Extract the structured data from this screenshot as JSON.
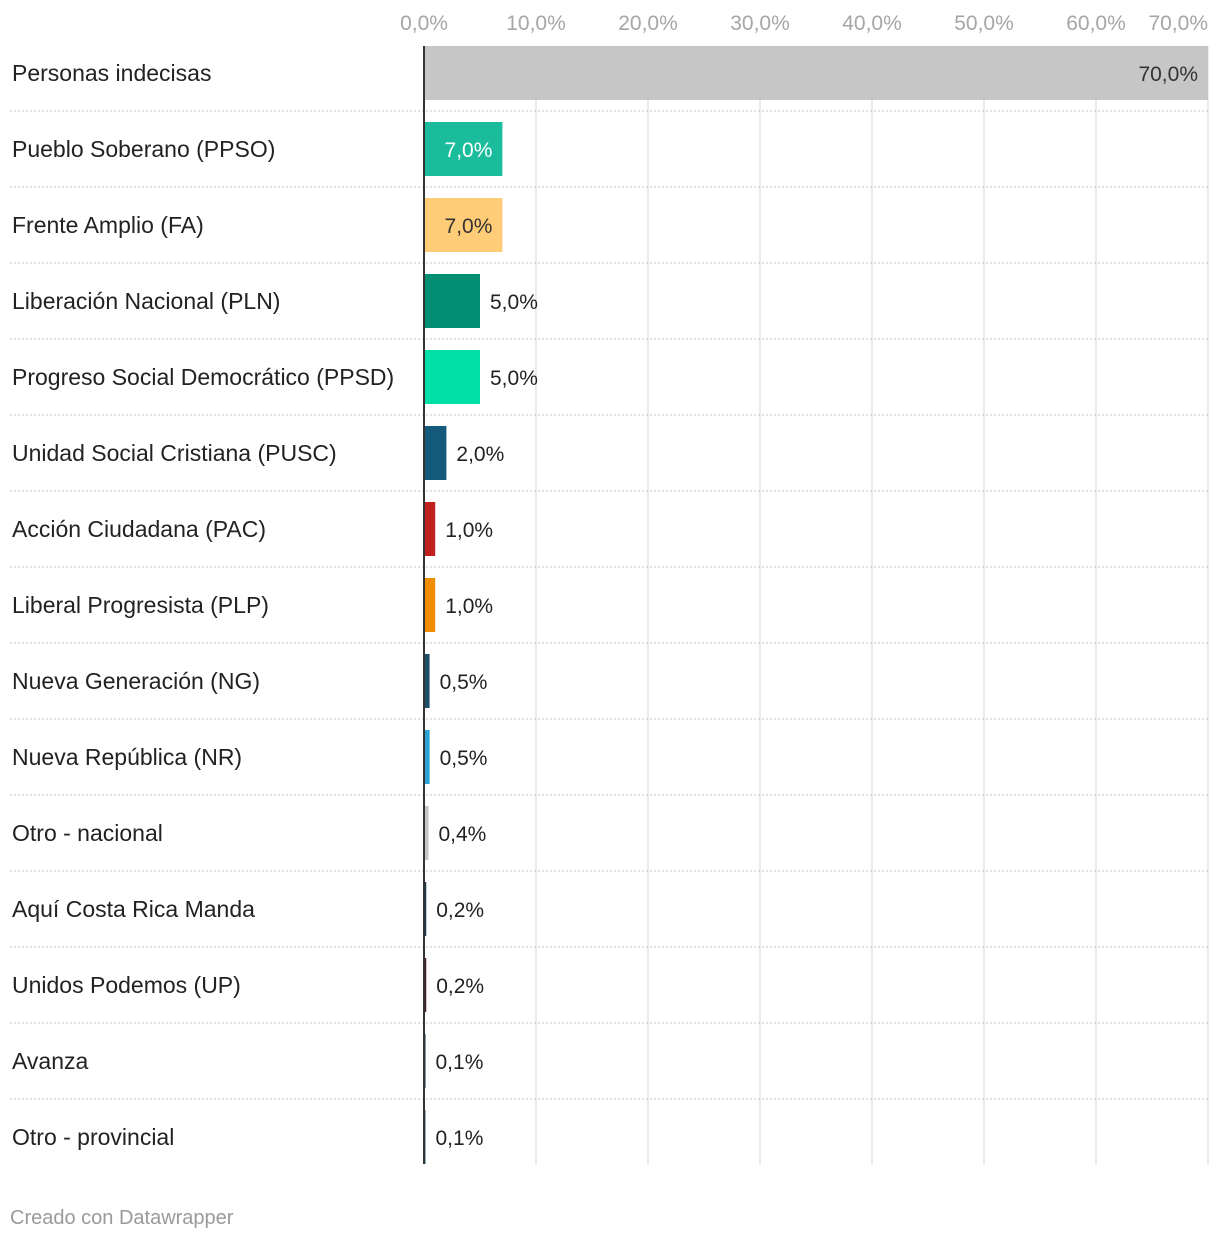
{
  "chart_data": {
    "type": "bar",
    "orientation": "horizontal",
    "categories": [
      "Personas indecisas",
      "Pueblo Soberano (PPSO)",
      "Frente Amplio (FA)",
      "Liberación Nacional (PLN)",
      "Progreso Social Democrático (PPSD)",
      "Unidad Social Cristiana (PUSC)",
      "Acción Ciudadana (PAC)",
      "Liberal Progresista (PLP)",
      "Nueva Generación (NG)",
      "Nueva República (NR)",
      "Otro - nacional",
      "Aquí Costa Rica Manda",
      "Unidos Podemos (UP)",
      "Avanza",
      "Otro - provincial"
    ],
    "values": [
      70.0,
      7.0,
      7.0,
      5.0,
      5.0,
      2.0,
      1.0,
      1.0,
      0.5,
      0.5,
      0.4,
      0.2,
      0.2,
      0.1,
      0.1
    ],
    "value_labels": [
      "70,0%",
      "7,0%",
      "7,0%",
      "5,0%",
      "5,0%",
      "2,0%",
      "1,0%",
      "1,0%",
      "0,5%",
      "0,5%",
      "0,4%",
      "0,2%",
      "0,2%",
      "0,1%",
      "0,1%"
    ],
    "colors": [
      "#c6c6c6",
      "#1abc9c",
      "#ffcc77",
      "#008f72",
      "#00dfa5",
      "#145a7a",
      "#c0211f",
      "#f08c00",
      "#1d4f6b",
      "#29a3d3",
      "#c4c4c4",
      "#123a4f",
      "#4a1b2b",
      "#123a4f",
      "#1b5c79"
    ],
    "label_inside": [
      true,
      true,
      true,
      false,
      false,
      false,
      false,
      false,
      false,
      false,
      false,
      false,
      false,
      false,
      false
    ],
    "label_colors": [
      "#333333",
      "#ffffff",
      "#333333",
      "#222222",
      "#222222",
      "#222222",
      "#222222",
      "#222222",
      "#222222",
      "#222222",
      "#222222",
      "#222222",
      "#222222",
      "#222222",
      "#222222"
    ],
    "xlim": [
      0,
      70
    ],
    "ticks": [
      0,
      10,
      20,
      30,
      40,
      50,
      60,
      70
    ],
    "tick_labels": [
      "0,0%",
      "10,0%",
      "20,0%",
      "30,0%",
      "40,0%",
      "50,0%",
      "60,0%",
      "70,0%"
    ],
    "title": "",
    "xlabel": "",
    "ylabel": "",
    "grid": true
  },
  "footer": {
    "credit": "Creado con Datawrapper"
  }
}
